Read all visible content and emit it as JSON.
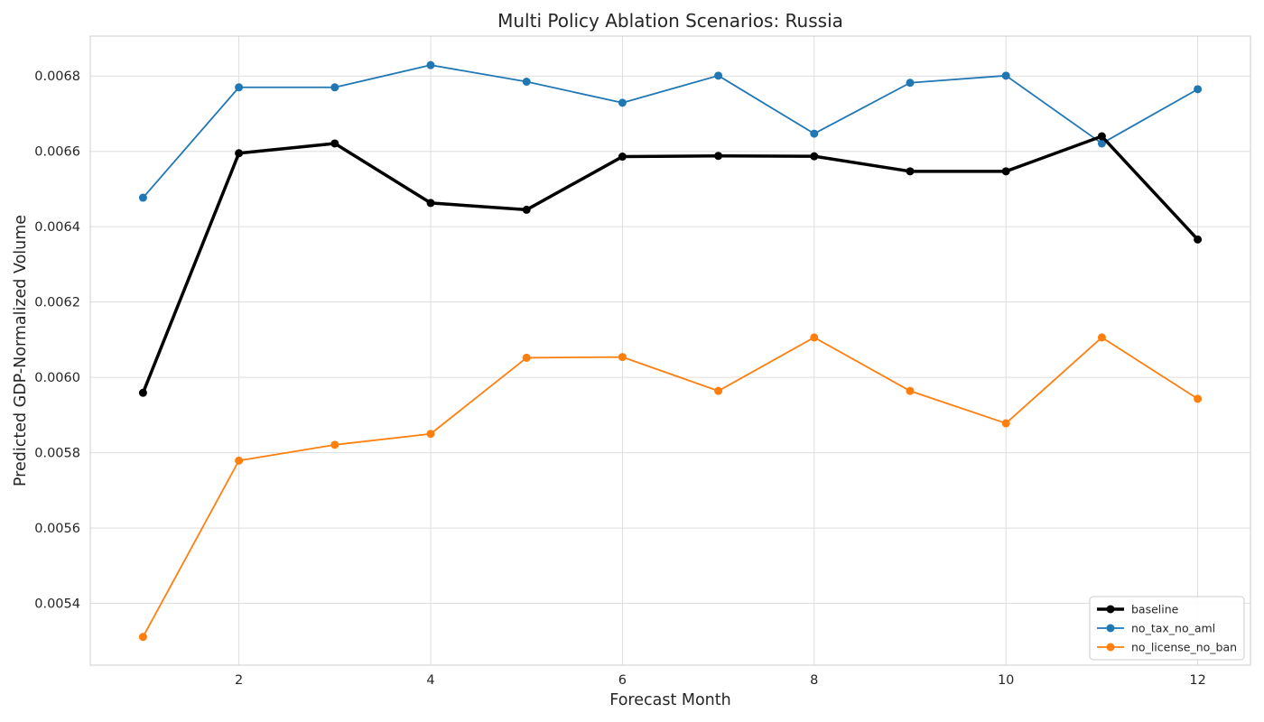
{
  "chart_data": {
    "type": "line",
    "title": "Multi Policy Ablation Scenarios: Russia",
    "xlabel": "Forecast Month",
    "ylabel": "Predicted GDP-Normalized Volume",
    "xlim": [
      0.45,
      12.55
    ],
    "ylim": [
      0.005236,
      0.006906
    ],
    "xticks": [
      2,
      4,
      6,
      8,
      10,
      12
    ],
    "xtick_labels": [
      "2",
      "4",
      "6",
      "8",
      "10",
      "12"
    ],
    "yticks": [
      0.0054,
      0.0056,
      0.0058,
      0.006,
      0.0062,
      0.0064,
      0.0066,
      0.0068
    ],
    "ytick_labels": [
      "0.0054",
      "0.0056",
      "0.0058",
      "0.0060",
      "0.0062",
      "0.0064",
      "0.0066",
      "0.0068"
    ],
    "grid": true,
    "legend_position": "lower-right",
    "x": [
      1,
      2,
      3,
      4,
      5,
      6,
      7,
      8,
      9,
      10,
      11,
      12
    ],
    "series": [
      {
        "name": "baseline",
        "color": "#000000",
        "values": [
          0.005959,
          0.006595,
          0.006621,
          0.006463,
          0.006445,
          0.006586,
          0.006588,
          0.006587,
          0.006547,
          0.006547,
          0.00664,
          0.006366
        ]
      },
      {
        "name": "no_tax_no_aml",
        "color": "#1f77b4",
        "values": [
          0.006477,
          0.00677,
          0.00677,
          0.006829,
          0.006785,
          0.006729,
          0.006801,
          0.006647,
          0.006782,
          0.006801,
          0.006621,
          0.006765
        ]
      },
      {
        "name": "no_license_no_ban",
        "color": "#ff7f0e",
        "values": [
          0.005311,
          0.005779,
          0.005821,
          0.00585,
          0.006052,
          0.006054,
          0.005964,
          0.006106,
          0.005964,
          0.005878,
          0.006106,
          0.005943
        ]
      }
    ]
  }
}
